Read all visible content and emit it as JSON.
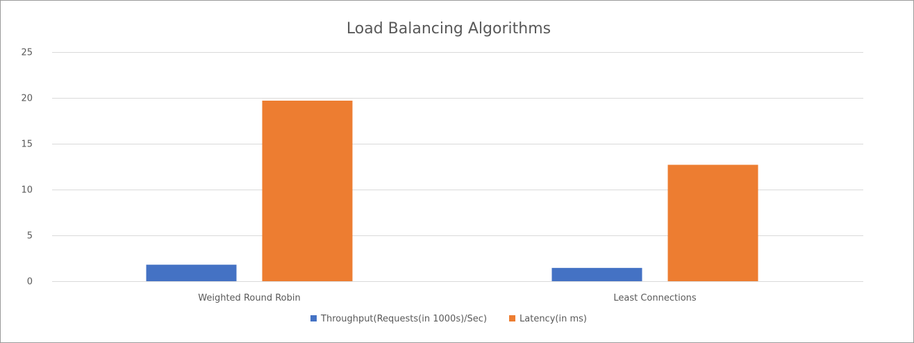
{
  "chart_data": {
    "type": "bar",
    "title": "Load Balancing Algorithms",
    "categories": [
      "Weighted Round Robin",
      "Least Connections"
    ],
    "series": [
      {
        "name": "Throughput(Requests(in 1000s)/Sec)",
        "values": [
          1.8,
          1.45
        ],
        "color": "#4472c4"
      },
      {
        "name": "Latency(in ms)",
        "values": [
          19.7,
          12.7
        ],
        "color": "#ed7d31"
      }
    ],
    "ylim": [
      0,
      25
    ],
    "yticks": [
      0,
      5,
      10,
      15,
      20,
      25
    ],
    "xlabel": "",
    "ylabel": "",
    "grid": true,
    "legend_position": "bottom",
    "colors": {
      "grid": "#d9d9d9",
      "axis": "#d9d9d9",
      "text": "#595959"
    }
  }
}
